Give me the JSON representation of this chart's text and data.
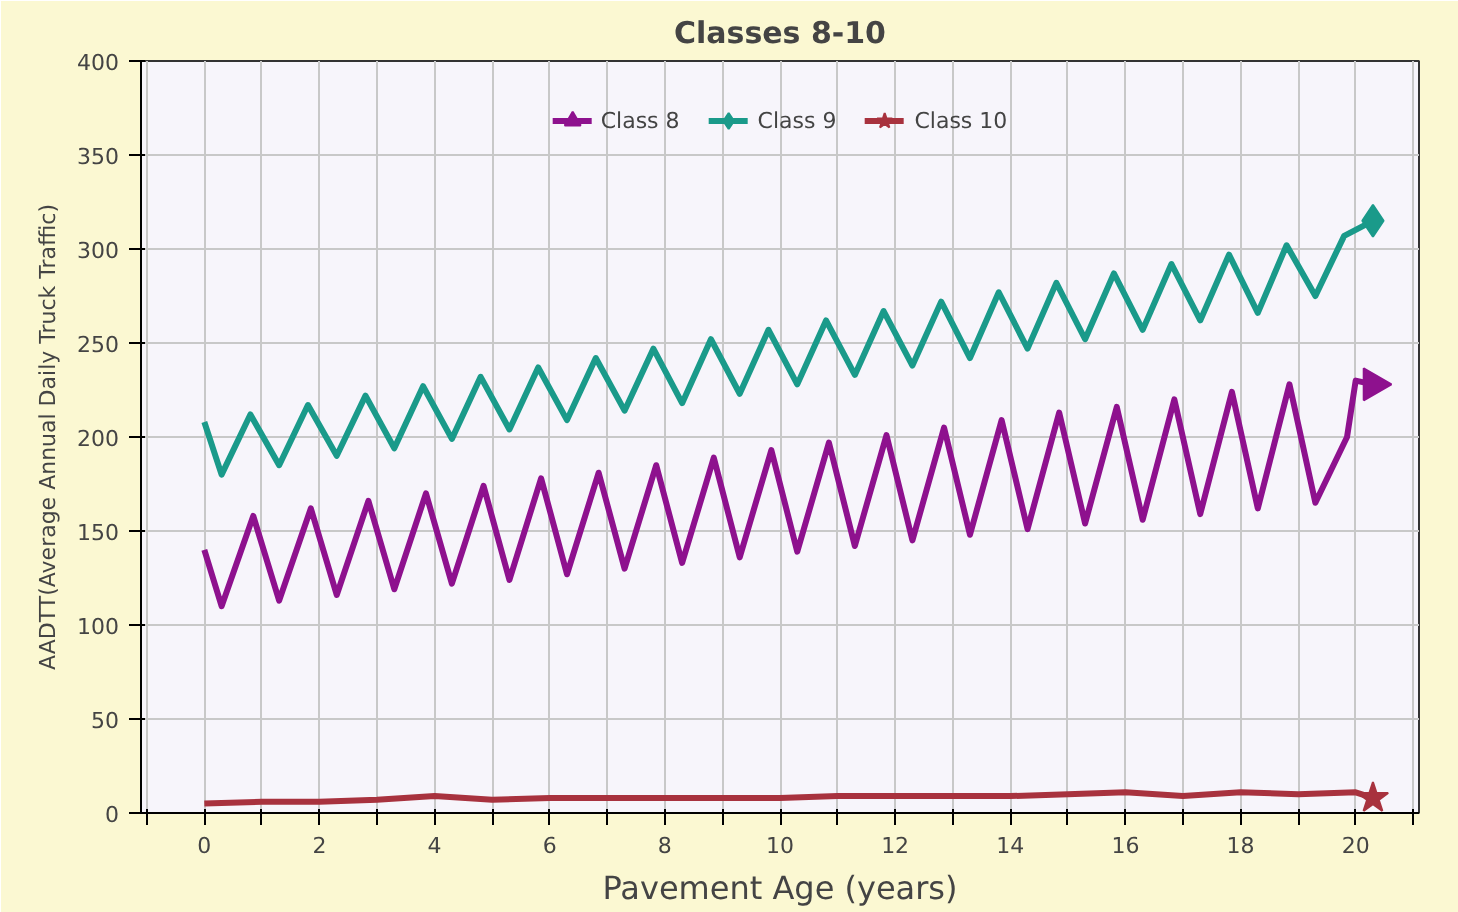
{
  "chart_data": {
    "type": "line",
    "title": "Classes 8-10",
    "xlabel": "Pavement Age (years)",
    "ylabel": "AADTT(Average Annual Daily Truck Traffic)",
    "xlim": [
      -1.1,
      21.1
    ],
    "ylim": [
      0,
      400
    ],
    "xticks": [
      {
        "value": -1,
        "label": null
      },
      0,
      {
        "value": 1,
        "label": null
      },
      2,
      {
        "value": 3,
        "label": null
      },
      4,
      {
        "value": 5,
        "label": null
      },
      6,
      {
        "value": 7,
        "label": null
      },
      8,
      {
        "value": 9,
        "label": null
      },
      10,
      {
        "value": 11,
        "label": null
      },
      12,
      {
        "value": 13,
        "label": null
      },
      14,
      {
        "value": 15,
        "label": null
      },
      16,
      {
        "value": 17,
        "label": null
      },
      18,
      {
        "value": 19,
        "label": null
      },
      20,
      {
        "value": 21,
        "label": null
      }
    ],
    "yticks": [
      0,
      50,
      100,
      150,
      200,
      250,
      300,
      350,
      400
    ],
    "grid": true,
    "legend": "top",
    "series": [
      {
        "name": "Class 8",
        "color": "#8e118e",
        "x": [
          0,
          0.3,
          0.85,
          1.3,
          1.85,
          2.3,
          2.85,
          3.3,
          3.85,
          4.3,
          4.85,
          5.3,
          5.85,
          6.3,
          6.85,
          7.3,
          7.85,
          8.3,
          8.85,
          9.3,
          9.85,
          10.3,
          10.85,
          11.3,
          11.85,
          12.3,
          12.85,
          13.3,
          13.85,
          14.3,
          14.85,
          15.3,
          15.85,
          16.3,
          16.85,
          17.3,
          17.85,
          18.3,
          18.85,
          19.3,
          19.85,
          20.0,
          20.3
        ],
        "values": [
          140,
          110,
          158,
          113,
          162,
          116,
          166,
          119,
          170,
          122,
          174,
          124,
          178,
          127,
          181,
          130,
          185,
          133,
          189,
          136,
          193,
          139,
          197,
          142,
          201,
          145,
          205,
          148,
          209,
          151,
          213,
          154,
          216,
          156,
          220,
          159,
          224,
          162,
          228,
          165,
          200,
          230,
          228
        ]
      },
      {
        "name": "Class 9",
        "color": "#1a9a8a",
        "x": [
          0,
          0.3,
          0.8,
          1.3,
          1.8,
          2.3,
          2.8,
          3.3,
          3.8,
          4.3,
          4.8,
          5.3,
          5.8,
          6.3,
          6.8,
          7.3,
          7.8,
          8.3,
          8.8,
          9.3,
          9.8,
          10.3,
          10.8,
          11.3,
          11.8,
          12.3,
          12.8,
          13.3,
          13.8,
          14.3,
          14.8,
          15.3,
          15.8,
          16.3,
          16.8,
          17.3,
          17.8,
          18.3,
          18.8,
          19.3,
          19.8,
          20.3
        ],
        "values": [
          208,
          180,
          212,
          185,
          217,
          190,
          222,
          194,
          227,
          199,
          232,
          204,
          237,
          209,
          242,
          214,
          247,
          218,
          252,
          223,
          257,
          228,
          262,
          233,
          267,
          238,
          272,
          242,
          277,
          247,
          282,
          252,
          287,
          257,
          292,
          262,
          297,
          266,
          302,
          275,
          307,
          315
        ]
      },
      {
        "name": "Class 10",
        "color": "#a8323e",
        "x": [
          0,
          1,
          2,
          3,
          4,
          5,
          6,
          7,
          8,
          9,
          10,
          11,
          12,
          13,
          14,
          15,
          16,
          17,
          18,
          19,
          20,
          20.3
        ],
        "values": [
          5,
          6,
          6,
          7,
          9,
          7,
          8,
          8,
          8,
          8,
          8,
          9,
          9,
          9,
          9,
          10,
          11,
          9,
          11,
          10,
          11,
          8
        ]
      }
    ]
  }
}
